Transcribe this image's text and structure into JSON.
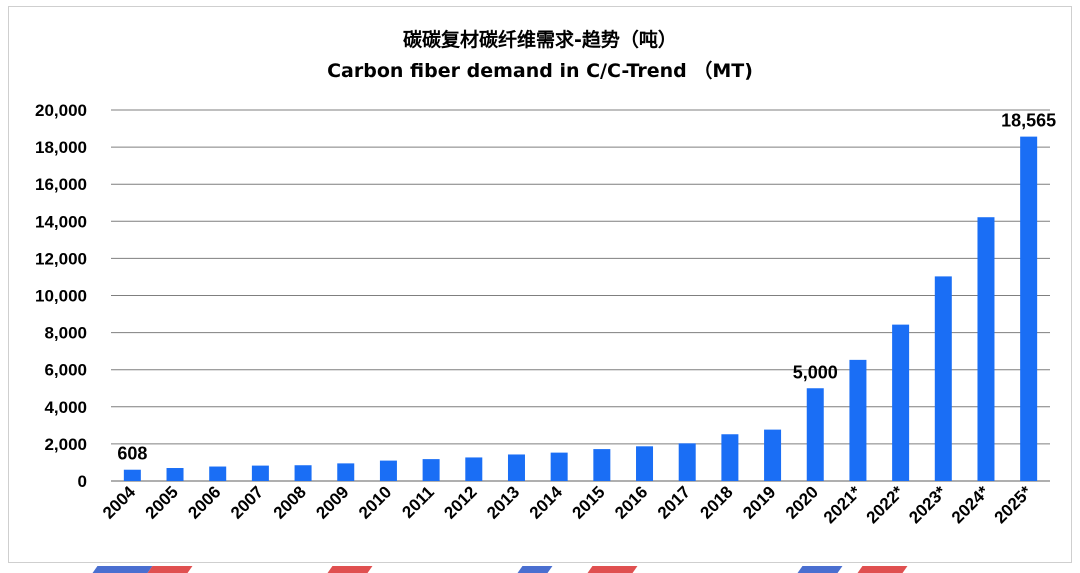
{
  "chart_data": {
    "type": "bar",
    "title": "碳碳复材碳纤维需求-趋势（吨）",
    "subtitle": "Carbon fiber demand in C/C-Trend （MT)",
    "xlabel": "",
    "ylabel": "",
    "categories": [
      "2004",
      "2005",
      "2006",
      "2007",
      "2008",
      "2009",
      "2010",
      "2011",
      "2012",
      "2013",
      "2014",
      "2015",
      "2016",
      "2017",
      "2018",
      "2019",
      "2020",
      "2021*",
      "2022*",
      "2023*",
      "2024*",
      "2025*"
    ],
    "values": [
      608,
      700,
      780,
      830,
      850,
      950,
      1100,
      1180,
      1270,
      1430,
      1530,
      1720,
      1870,
      2030,
      2520,
      2770,
      5000,
      6530,
      8430,
      11030,
      14220,
      18565
    ],
    "ylim": [
      0,
      20000
    ],
    "yticks": [
      "0",
      "2,000",
      "4,000",
      "6,000",
      "8,000",
      "10,000",
      "12,000",
      "14,000",
      "16,000",
      "18,000",
      "20,000"
    ],
    "data_labels": [
      {
        "index": 0,
        "text": "608"
      },
      {
        "index": 16,
        "text": "5,000"
      },
      {
        "index": 21,
        "text": "18,565"
      }
    ],
    "grid": true,
    "legend": "none",
    "bar_color": "#1a6ef5"
  },
  "colors": {
    "bar": "#1a6ef5",
    "grid": "#7f7f7f",
    "stripe_blue": "#4a6fd0",
    "stripe_red": "#e05050"
  }
}
